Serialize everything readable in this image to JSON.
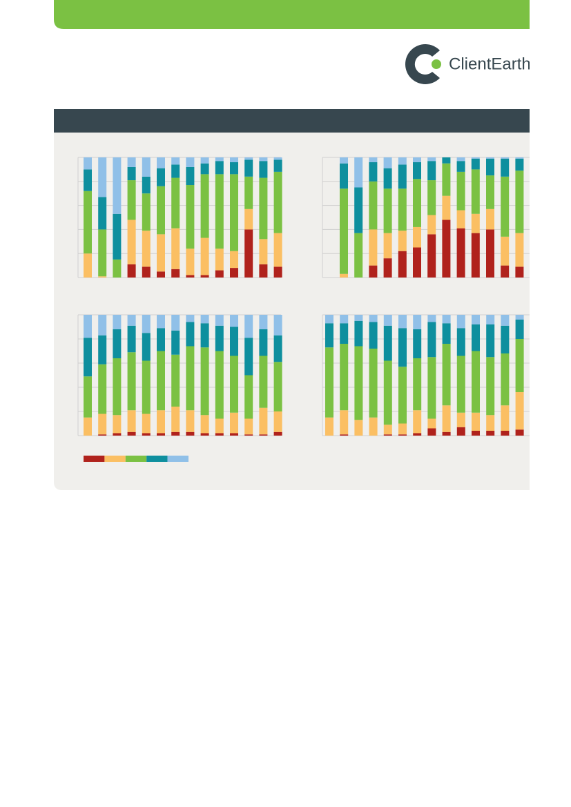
{
  "logo": {
    "text": "ClientEarth"
  },
  "chart_data": [
    {
      "type": "bar",
      "stacked": true,
      "grid": true,
      "ylim": [
        0,
        100
      ],
      "yticks": [
        0,
        20,
        40,
        60,
        80,
        100
      ],
      "categories": [
        null,
        null,
        null,
        null,
        null,
        null,
        null,
        null,
        null,
        null,
        null,
        null,
        null,
        null
      ],
      "series": [
        {
          "color": "#b0221c",
          "values": [
            0,
            0,
            0,
            11,
            9,
            5,
            7,
            2,
            2,
            6,
            8,
            40,
            11,
            9
          ]
        },
        {
          "color": "#fbbf63",
          "values": [
            20,
            1,
            0,
            37,
            30,
            31,
            34,
            22,
            31,
            18,
            14,
            17,
            21,
            28
          ]
        },
        {
          "color": "#7bc143",
          "values": [
            52,
            39,
            15,
            33,
            31,
            40,
            42,
            53,
            53,
            62,
            64,
            27,
            51,
            51
          ]
        },
        {
          "color": "#0e8f9e",
          "values": [
            18,
            27,
            38,
            11,
            14,
            15,
            11,
            15,
            9,
            11,
            10,
            14,
            14,
            10
          ]
        },
        {
          "color": "#90c0e8",
          "values": [
            10,
            33,
            47,
            8,
            16,
            9,
            6,
            8,
            5,
            3,
            4,
            2,
            3,
            2
          ]
        }
      ]
    },
    {
      "type": "bar",
      "stacked": true,
      "grid": true,
      "ylim": [
        0,
        100
      ],
      "yticks": [
        0,
        20,
        40,
        60,
        80,
        100
      ],
      "categories": [
        null,
        null,
        null,
        null,
        null,
        null,
        null,
        null,
        null,
        null,
        null,
        null,
        null
      ],
      "series": [
        {
          "color": "#b0221c",
          "values": [
            0,
            0,
            10,
            16,
            22,
            25,
            36,
            48,
            41,
            37,
            40,
            10,
            9
          ]
        },
        {
          "color": "#fbbf63",
          "values": [
            3,
            0,
            30,
            21,
            17,
            17,
            16,
            20,
            15,
            16,
            17,
            24,
            28
          ]
        },
        {
          "color": "#7bc143",
          "values": [
            71,
            37,
            40,
            37,
            35,
            40,
            29,
            27,
            32,
            37,
            28,
            50,
            52
          ]
        },
        {
          "color": "#0e8f9e",
          "values": [
            21,
            38,
            16,
            17,
            20,
            14,
            16,
            5,
            9,
            9,
            14,
            15,
            10
          ]
        },
        {
          "color": "#90c0e8",
          "values": [
            5,
            25,
            4,
            9,
            6,
            4,
            3,
            0,
            3,
            1,
            1,
            1,
            1
          ]
        }
      ]
    },
    {
      "type": "bar",
      "stacked": true,
      "grid": true,
      "legend": "bottom-left",
      "ylim": [
        0,
        100
      ],
      "yticks": [
        0,
        20,
        40,
        60,
        80,
        100
      ],
      "categories": [
        null,
        null,
        null,
        null,
        null,
        null,
        null,
        null,
        null,
        null,
        null,
        null,
        null,
        null
      ],
      "series": [
        {
          "color": "#b0221c",
          "values": [
            0,
            1,
            2,
            3,
            2,
            2,
            3,
            3,
            2,
            2,
            2,
            1,
            1,
            3
          ]
        },
        {
          "color": "#fbbf63",
          "values": [
            15,
            17,
            15,
            18,
            16,
            19,
            21,
            18,
            15,
            12,
            17,
            13,
            22,
            17
          ]
        },
        {
          "color": "#7bc143",
          "values": [
            34,
            41,
            47,
            48,
            44,
            49,
            43,
            53,
            56,
            56,
            47,
            36,
            43,
            41
          ]
        },
        {
          "color": "#0e8f9e",
          "values": [
            32,
            24,
            24,
            22,
            23,
            19,
            20,
            20,
            20,
            21,
            24,
            31,
            22,
            22
          ]
        },
        {
          "color": "#90c0e8",
          "values": [
            19,
            17,
            12,
            9,
            15,
            11,
            13,
            6,
            7,
            9,
            10,
            19,
            12,
            17
          ]
        }
      ]
    },
    {
      "type": "bar",
      "stacked": true,
      "grid": true,
      "ylim": [
        0,
        100
      ],
      "yticks": [
        0,
        20,
        40,
        60,
        80,
        100
      ],
      "categories": [
        null,
        null,
        null,
        null,
        null,
        null,
        null,
        null,
        null,
        null,
        null,
        null,
        null,
        null
      ],
      "series": [
        {
          "color": "#b0221c",
          "values": [
            0,
            1,
            0,
            0,
            1,
            1,
            2,
            6,
            3,
            7,
            4,
            4,
            4,
            5
          ]
        },
        {
          "color": "#fbbf63",
          "values": [
            15,
            20,
            13,
            15,
            8,
            9,
            19,
            8,
            22,
            12,
            15,
            13,
            21,
            31
          ]
        },
        {
          "color": "#7bc143",
          "values": [
            58,
            55,
            61,
            57,
            53,
            47,
            43,
            51,
            51,
            47,
            51,
            48,
            43,
            44
          ]
        },
        {
          "color": "#0e8f9e",
          "values": [
            20,
            17,
            21,
            22,
            29,
            32,
            24,
            29,
            17,
            23,
            22,
            27,
            23,
            16
          ]
        },
        {
          "color": "#90c0e8",
          "values": [
            7,
            7,
            5,
            6,
            9,
            11,
            12,
            6,
            7,
            11,
            8,
            8,
            9,
            4
          ]
        }
      ]
    }
  ]
}
